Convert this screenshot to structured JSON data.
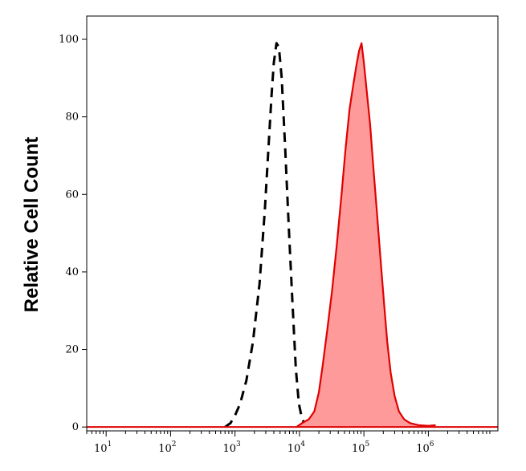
{
  "chart_data": {
    "type": "area",
    "title": "",
    "xlabel": "",
    "ylabel": "Relative Cell Count",
    "x_scale": "log",
    "xlim": [
      5,
      12000000
    ],
    "ylim": [
      -1,
      106
    ],
    "grid": false,
    "legend": "none",
    "x_ticks": [
      {
        "base": "10",
        "exp": "1",
        "value": 10
      },
      {
        "base": "10",
        "exp": "2",
        "value": 100
      },
      {
        "base": "10",
        "exp": "3",
        "value": 1000
      },
      {
        "base": "10",
        "exp": "4",
        "value": 10000
      },
      {
        "base": "10",
        "exp": "5",
        "value": 100000
      },
      {
        "base": "10",
        "exp": "6",
        "value": 1000000
      }
    ],
    "y_ticks": [
      "0",
      "20",
      "40",
      "60",
      "80",
      "100"
    ],
    "series": [
      {
        "style": "dashed",
        "color": "#000000",
        "points": [
          [
            700,
            0
          ],
          [
            850,
            1
          ],
          [
            1000,
            3
          ],
          [
            1200,
            6
          ],
          [
            1500,
            12
          ],
          [
            1900,
            22
          ],
          [
            2400,
            37
          ],
          [
            2900,
            56
          ],
          [
            3300,
            72
          ],
          [
            3700,
            86
          ],
          [
            4000,
            94
          ],
          [
            4400,
            99
          ],
          [
            4800,
            98
          ],
          [
            5300,
            90
          ],
          [
            6000,
            72
          ],
          [
            6800,
            52
          ],
          [
            7800,
            32
          ],
          [
            8800,
            15
          ],
          [
            9800,
            6
          ],
          [
            11000,
            2
          ],
          [
            13000,
            0
          ]
        ]
      },
      {
        "style": "filled",
        "color": "#e00000",
        "fill": "#ff9a9a",
        "points": [
          [
            9000,
            0
          ],
          [
            11000,
            1
          ],
          [
            14000,
            2
          ],
          [
            17000,
            4
          ],
          [
            20000,
            9
          ],
          [
            23000,
            16
          ],
          [
            27000,
            25
          ],
          [
            32000,
            35
          ],
          [
            38000,
            47
          ],
          [
            45000,
            60
          ],
          [
            52000,
            72
          ],
          [
            60000,
            82
          ],
          [
            68000,
            88
          ],
          [
            76000,
            93
          ],
          [
            84000,
            97
          ],
          [
            92000,
            99
          ],
          [
            100000,
            94
          ],
          [
            110000,
            87
          ],
          [
            125000,
            78
          ],
          [
            140000,
            67
          ],
          [
            160000,
            55
          ],
          [
            180000,
            44
          ],
          [
            205000,
            32
          ],
          [
            230000,
            22
          ],
          [
            260000,
            14
          ],
          [
            300000,
            8
          ],
          [
            350000,
            4
          ],
          [
            420000,
            2
          ],
          [
            520000,
            1
          ],
          [
            700000,
            0.5
          ],
          [
            1000000,
            0.3
          ],
          [
            1300000,
            0.5
          ]
        ]
      }
    ]
  }
}
